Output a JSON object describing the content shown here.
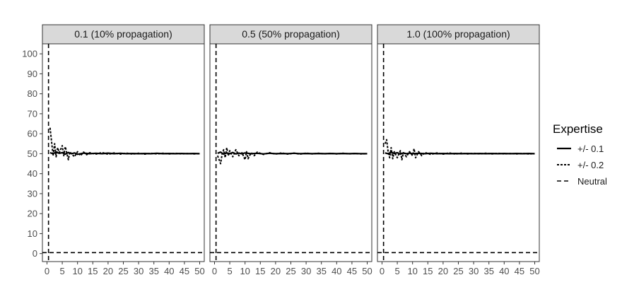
{
  "chart_data": {
    "type": "line",
    "facets": [
      {
        "label": "0.1 (10% propagation)"
      },
      {
        "label": "0.5 (50% propagation)"
      },
      {
        "label": "1.0 (100% propagation)"
      }
    ],
    "xlabel": "",
    "ylabel": "",
    "xlim": [
      -1.5,
      51.5
    ],
    "ylim": [
      -4,
      105
    ],
    "x_ticks": [
      0,
      5,
      10,
      15,
      20,
      25,
      30,
      35,
      40,
      45,
      50
    ],
    "y_ticks": [
      0,
      10,
      20,
      30,
      40,
      50,
      60,
      70,
      80,
      90,
      100
    ],
    "grid": false,
    "legend": {
      "title": "Expertise",
      "position": "right",
      "entries": [
        {
          "label": "+/- 0.1",
          "linetype": "solid"
        },
        {
          "label": "+/- 0.2",
          "linetype": "dotted-dash"
        },
        {
          "label": "Neutral",
          "linetype": "long-dash"
        }
      ]
    },
    "reference_lines": {
      "vertical_x": 0.5,
      "horizontal_y": 0.5
    },
    "series_values": [
      {
        "linetype": "solid",
        "panels": [
          [
            [
              1,
              50.5
            ],
            [
              2,
              50.0
            ],
            [
              3,
              50.8
            ],
            [
              4,
              50.2
            ],
            [
              5,
              50.5
            ],
            [
              6,
              49.8
            ],
            [
              7,
              50.6
            ],
            [
              8,
              50.0
            ],
            [
              9,
              50.4
            ],
            [
              10,
              49.7
            ],
            [
              12,
              50.3
            ],
            [
              14,
              50.0
            ],
            [
              16,
              50.2
            ],
            [
              18,
              50.0
            ],
            [
              20,
              50.3
            ],
            [
              22,
              50.0
            ],
            [
              24,
              50.2
            ],
            [
              26,
              50.0
            ],
            [
              28,
              50.1
            ],
            [
              30,
              50.0
            ],
            [
              32,
              50.1
            ],
            [
              34,
              50.0
            ],
            [
              36,
              50.2
            ],
            [
              38,
              50.0
            ],
            [
              40,
              50.1
            ],
            [
              42,
              50.0
            ],
            [
              44,
              50.1
            ],
            [
              46,
              50.0
            ],
            [
              48,
              50.1
            ],
            [
              50,
              50.0
            ]
          ],
          [
            [
              1,
              50.2
            ],
            [
              2,
              50.8
            ],
            [
              3,
              49.8
            ],
            [
              4,
              50.4
            ],
            [
              5,
              50.0
            ],
            [
              6,
              50.6
            ],
            [
              7,
              49.9
            ],
            [
              8,
              50.3
            ],
            [
              9,
              50.0
            ],
            [
              10,
              50.4
            ],
            [
              12,
              50.0
            ],
            [
              14,
              50.2
            ],
            [
              16,
              49.9
            ],
            [
              18,
              50.2
            ],
            [
              20,
              50.0
            ],
            [
              22,
              50.1
            ],
            [
              24,
              50.0
            ],
            [
              26,
              50.2
            ],
            [
              28,
              50.0
            ],
            [
              30,
              50.1
            ],
            [
              32,
              50.0
            ],
            [
              34,
              50.1
            ],
            [
              36,
              50.0
            ],
            [
              38,
              50.1
            ],
            [
              40,
              50.0
            ],
            [
              42,
              50.1
            ],
            [
              44,
              50.0
            ],
            [
              46,
              50.1
            ],
            [
              48,
              50.0
            ],
            [
              50,
              50.0
            ]
          ],
          [
            [
              1,
              50.4
            ],
            [
              2,
              50.0
            ],
            [
              3,
              50.7
            ],
            [
              4,
              50.1
            ],
            [
              5,
              50.5
            ],
            [
              6,
              49.8
            ],
            [
              7,
              50.4
            ],
            [
              8,
              50.0
            ],
            [
              9,
              50.3
            ],
            [
              10,
              50.0
            ],
            [
              12,
              50.2
            ],
            [
              14,
              50.0
            ],
            [
              16,
              50.2
            ],
            [
              18,
              50.0
            ],
            [
              20,
              50.1
            ],
            [
              22,
              50.0
            ],
            [
              24,
              50.1
            ],
            [
              26,
              50.0
            ],
            [
              28,
              50.1
            ],
            [
              30,
              50.0
            ],
            [
              32,
              50.1
            ],
            [
              34,
              50.0
            ],
            [
              36,
              50.1
            ],
            [
              38,
              50.0
            ],
            [
              40,
              50.1
            ],
            [
              42,
              50.0
            ],
            [
              44,
              50.1
            ],
            [
              46,
              50.0
            ],
            [
              48,
              50.1
            ],
            [
              50,
              50.0
            ]
          ]
        ]
      },
      {
        "linetype": "dotted-dash",
        "panels": [
          [
            [
              1,
              63
            ],
            [
              1.5,
              56
            ],
            [
              2,
              49
            ],
            [
              2.5,
              55
            ],
            [
              3,
              48.5
            ],
            [
              3.5,
              53
            ],
            [
              4,
              50.5
            ],
            [
              5,
              54
            ],
            [
              5.5,
              49
            ],
            [
              6,
              53.5
            ],
            [
              7,
              47
            ],
            [
              7.5,
              51
            ],
            [
              8,
              50
            ],
            [
              9,
              48.5
            ],
            [
              10,
              51
            ],
            [
              11,
              49
            ],
            [
              12,
              50.8
            ],
            [
              13,
              49.5
            ],
            [
              14,
              50.5
            ],
            [
              16,
              49.8
            ],
            [
              18,
              50.6
            ],
            [
              20,
              49.7
            ],
            [
              22,
              50.4
            ],
            [
              24,
              49.8
            ],
            [
              26,
              50.3
            ],
            [
              28,
              49.8
            ],
            [
              30,
              50.2
            ],
            [
              32,
              49.8
            ],
            [
              34,
              50.2
            ],
            [
              36,
              49.9
            ],
            [
              38,
              50.2
            ],
            [
              40,
              49.9
            ],
            [
              42,
              50.2
            ],
            [
              44,
              49.9
            ],
            [
              46,
              50.1
            ],
            [
              48,
              49.9
            ],
            [
              50,
              50.0
            ]
          ],
          [
            [
              1,
              49
            ],
            [
              1.5,
              47
            ],
            [
              2,
              45
            ],
            [
              2.5,
              50
            ],
            [
              3,
              52
            ],
            [
              3.5,
              48
            ],
            [
              4,
              53
            ],
            [
              4.5,
              49
            ],
            [
              5,
              51.5
            ],
            [
              6,
              48.5
            ],
            [
              7,
              52
            ],
            [
              8,
              49
            ],
            [
              9,
              50.5
            ],
            [
              10,
              47
            ],
            [
              10.5,
              51
            ],
            [
              11,
              47.5
            ],
            [
              12,
              50.5
            ],
            [
              13,
              49
            ],
            [
              14,
              50.8
            ],
            [
              16,
              49.6
            ],
            [
              18,
              50.5
            ],
            [
              20,
              49.8
            ],
            [
              22,
              50.4
            ],
            [
              24,
              49.8
            ],
            [
              26,
              50.3
            ],
            [
              28,
              49.8
            ],
            [
              30,
              50.3
            ],
            [
              32,
              49.9
            ],
            [
              34,
              50.2
            ],
            [
              36,
              49.9
            ],
            [
              38,
              50.2
            ],
            [
              40,
              49.9
            ],
            [
              42,
              50.2
            ],
            [
              44,
              49.9
            ],
            [
              46,
              50.1
            ],
            [
              48,
              49.9
            ],
            [
              50,
              50.0
            ]
          ],
          [
            [
              1,
              55
            ],
            [
              1.5,
              57
            ],
            [
              2,
              51
            ],
            [
              2.5,
              48
            ],
            [
              3,
              53
            ],
            [
              3.5,
              47.5
            ],
            [
              4,
              51
            ],
            [
              5,
              48
            ],
            [
              6,
              51.5
            ],
            [
              6.5,
              47
            ],
            [
              7,
              50.5
            ],
            [
              8,
              48.5
            ],
            [
              9,
              51
            ],
            [
              10,
              49
            ],
            [
              10.5,
              52.5
            ],
            [
              11,
              48
            ],
            [
              12,
              51
            ],
            [
              13,
              49
            ],
            [
              14,
              50.6
            ],
            [
              16,
              49.6
            ],
            [
              18,
              50.4
            ],
            [
              20,
              49.8
            ],
            [
              22,
              50.4
            ],
            [
              24,
              49.8
            ],
            [
              26,
              50.3
            ],
            [
              28,
              49.9
            ],
            [
              30,
              50.2
            ],
            [
              32,
              49.9
            ],
            [
              34,
              50.2
            ],
            [
              36,
              49.9
            ],
            [
              38,
              50.2
            ],
            [
              40,
              49.9
            ],
            [
              42,
              50.1
            ],
            [
              44,
              49.9
            ],
            [
              46,
              50.1
            ],
            [
              48,
              49.9
            ],
            [
              50,
              50.0
            ]
          ]
        ]
      }
    ]
  }
}
